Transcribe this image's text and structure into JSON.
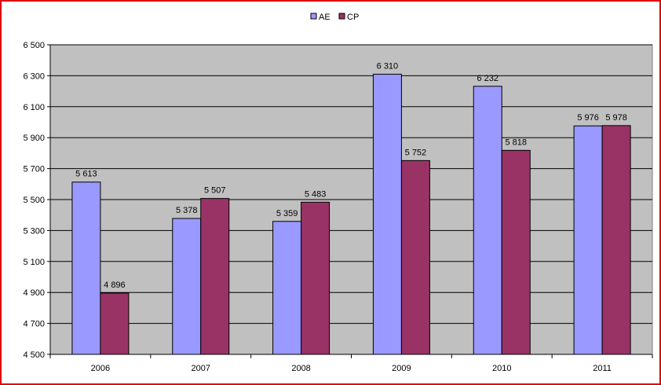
{
  "chart_data": {
    "type": "bar",
    "categories": [
      "2006",
      "2007",
      "2008",
      "2009",
      "2010",
      "2011"
    ],
    "series": [
      {
        "name": "AE",
        "values": [
          5613,
          5378,
          5359,
          6310,
          6232,
          5976
        ],
        "labels": [
          "5 613",
          "5 378",
          "5 359",
          "6 310",
          "6 232",
          "5 976"
        ],
        "color": "#9999ff"
      },
      {
        "name": "CP",
        "values": [
          4896,
          5507,
          5483,
          5752,
          5818,
          5978
        ],
        "labels": [
          "4 896",
          "5 507",
          "5 483",
          "5 752",
          "5 818",
          "5 978"
        ],
        "color": "#993366"
      }
    ],
    "ylim": [
      4500,
      6500
    ],
    "yticks": [
      4500,
      4700,
      4900,
      5100,
      5300,
      5500,
      5700,
      5900,
      6100,
      6300,
      6500
    ],
    "ytick_labels": [
      "4 500",
      "4 700",
      "4 900",
      "5 100",
      "5 300",
      "5 500",
      "5 700",
      "5 900",
      "6 100",
      "6 300",
      "6 500"
    ],
    "grid": true,
    "legend": "top",
    "plot_background": "#c0c0c0",
    "border_color": "#e00000"
  }
}
